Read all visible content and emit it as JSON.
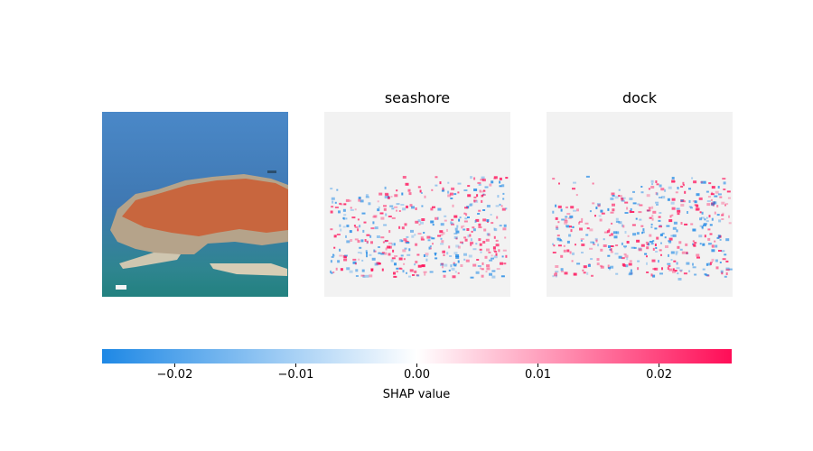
{
  "chart_data": {
    "type": "heatmap",
    "description_note": "",
    "panels": [
      {
        "title": "",
        "kind": "input-photo"
      },
      {
        "title": "seashore",
        "kind": "shap-heatmap"
      },
      {
        "title": "dock",
        "kind": "shap-heatmap"
      }
    ],
    "colorbar": {
      "label": "SHAP value",
      "range": [
        -0.026,
        0.026
      ],
      "ticks": [
        -0.02,
        -0.01,
        0.0,
        0.01,
        0.02
      ],
      "tick_labels": [
        "−0.02",
        "−0.01",
        "0.00",
        "0.01",
        "0.02"
      ],
      "colors": {
        "negative": "#1e88e5",
        "zero": "#ffffff",
        "positive": "#ff0d57"
      }
    }
  }
}
